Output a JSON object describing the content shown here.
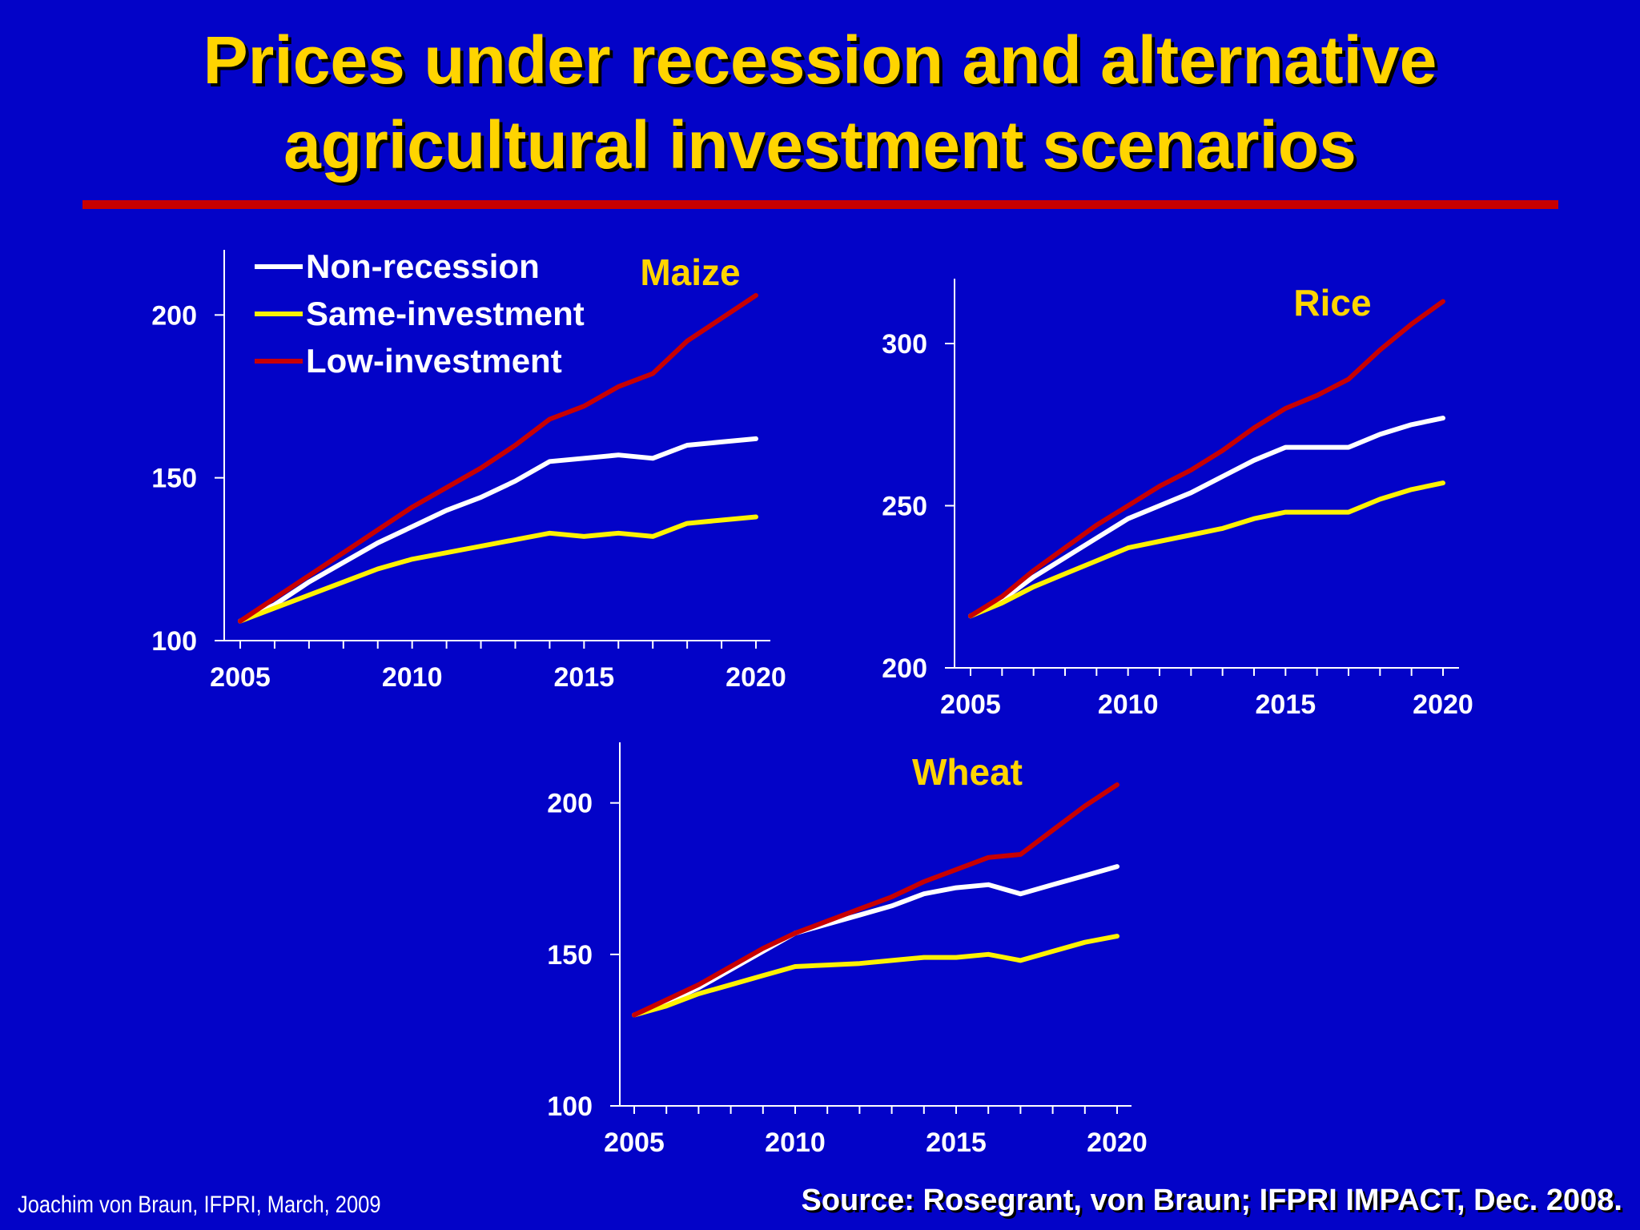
{
  "slide": {
    "title_line1": "Prices under recession and alternative",
    "title_line2": "agricultural investment scenarios",
    "author": "Joachim von Braun, IFPRI, March, 2009",
    "source": "Source: Rosegrant, von Braun; IFPRI IMPACT, Dec. 2008."
  },
  "colors": {
    "background": "#0303C8",
    "title": "#FFD400",
    "rule": "#C80000",
    "Non-recession": "#FFFFFF",
    "Same-investment": "#FFF200",
    "Low-investment": "#C80000"
  },
  "legend": [
    "Non-recession",
    "Same-investment",
    "Low-investment"
  ],
  "chart_data": [
    {
      "type": "line",
      "title": "Maize",
      "x": [
        2005,
        2006,
        2007,
        2008,
        2009,
        2010,
        2011,
        2012,
        2013,
        2014,
        2015,
        2016,
        2017,
        2018,
        2019,
        2020
      ],
      "xticks": [
        2005,
        2010,
        2015,
        2020
      ],
      "ylim": [
        100,
        220
      ],
      "yticks": [
        100,
        150,
        200
      ],
      "series": [
        {
          "name": "Non-recession",
          "values": [
            106,
            111,
            118,
            124,
            130,
            135,
            140,
            144,
            149,
            155,
            156,
            157,
            156,
            160,
            161,
            162
          ]
        },
        {
          "name": "Same-investment",
          "values": [
            106,
            110,
            114,
            118,
            122,
            125,
            127,
            129,
            131,
            133,
            132,
            133,
            132,
            136,
            137,
            138
          ]
        },
        {
          "name": "Low-investment",
          "values": [
            106,
            113,
            120,
            127,
            134,
            141,
            147,
            153,
            160,
            168,
            172,
            178,
            182,
            192,
            199,
            206
          ]
        }
      ]
    },
    {
      "type": "line",
      "title": "Rice",
      "x": [
        2005,
        2006,
        2007,
        2008,
        2009,
        2010,
        2011,
        2012,
        2013,
        2014,
        2015,
        2016,
        2017,
        2018,
        2019,
        2020
      ],
      "xticks": [
        2005,
        2010,
        2015,
        2020
      ],
      "ylim": [
        200,
        320
      ],
      "yticks": [
        200,
        250,
        300
      ],
      "series": [
        {
          "name": "Non-recession",
          "values": [
            216,
            221,
            228,
            234,
            240,
            246,
            250,
            254,
            259,
            264,
            268,
            268,
            268,
            272,
            275,
            277
          ]
        },
        {
          "name": "Same-investment",
          "values": [
            216,
            220,
            225,
            229,
            233,
            237,
            239,
            241,
            243,
            246,
            248,
            248,
            248,
            252,
            255,
            257
          ]
        },
        {
          "name": "Low-investment",
          "values": [
            216,
            222,
            230,
            237,
            244,
            250,
            256,
            261,
            267,
            274,
            280,
            284,
            289,
            298,
            306,
            313
          ]
        }
      ]
    },
    {
      "type": "line",
      "title": "Wheat",
      "x": [
        2005,
        2006,
        2007,
        2008,
        2009,
        2010,
        2011,
        2012,
        2013,
        2014,
        2015,
        2016,
        2017,
        2018,
        2019,
        2020
      ],
      "xticks": [
        2005,
        2010,
        2015,
        2020
      ],
      "ylim": [
        100,
        220
      ],
      "yticks": [
        100,
        150,
        200
      ],
      "series": [
        {
          "name": "Non-recession",
          "values": [
            130,
            134,
            139,
            145,
            151,
            157,
            160,
            163,
            166,
            170,
            172,
            173,
            170,
            173,
            176,
            179
          ]
        },
        {
          "name": "Same-investment",
          "values": [
            130,
            133,
            137,
            140,
            143,
            146,
            146.5,
            147,
            148,
            149,
            149,
            150,
            148,
            151,
            154,
            156
          ]
        },
        {
          "name": "Low-investment",
          "values": [
            130,
            135,
            140,
            146,
            152,
            157,
            161,
            165,
            169,
            174,
            178,
            182,
            183,
            191,
            199,
            206
          ]
        }
      ]
    }
  ]
}
